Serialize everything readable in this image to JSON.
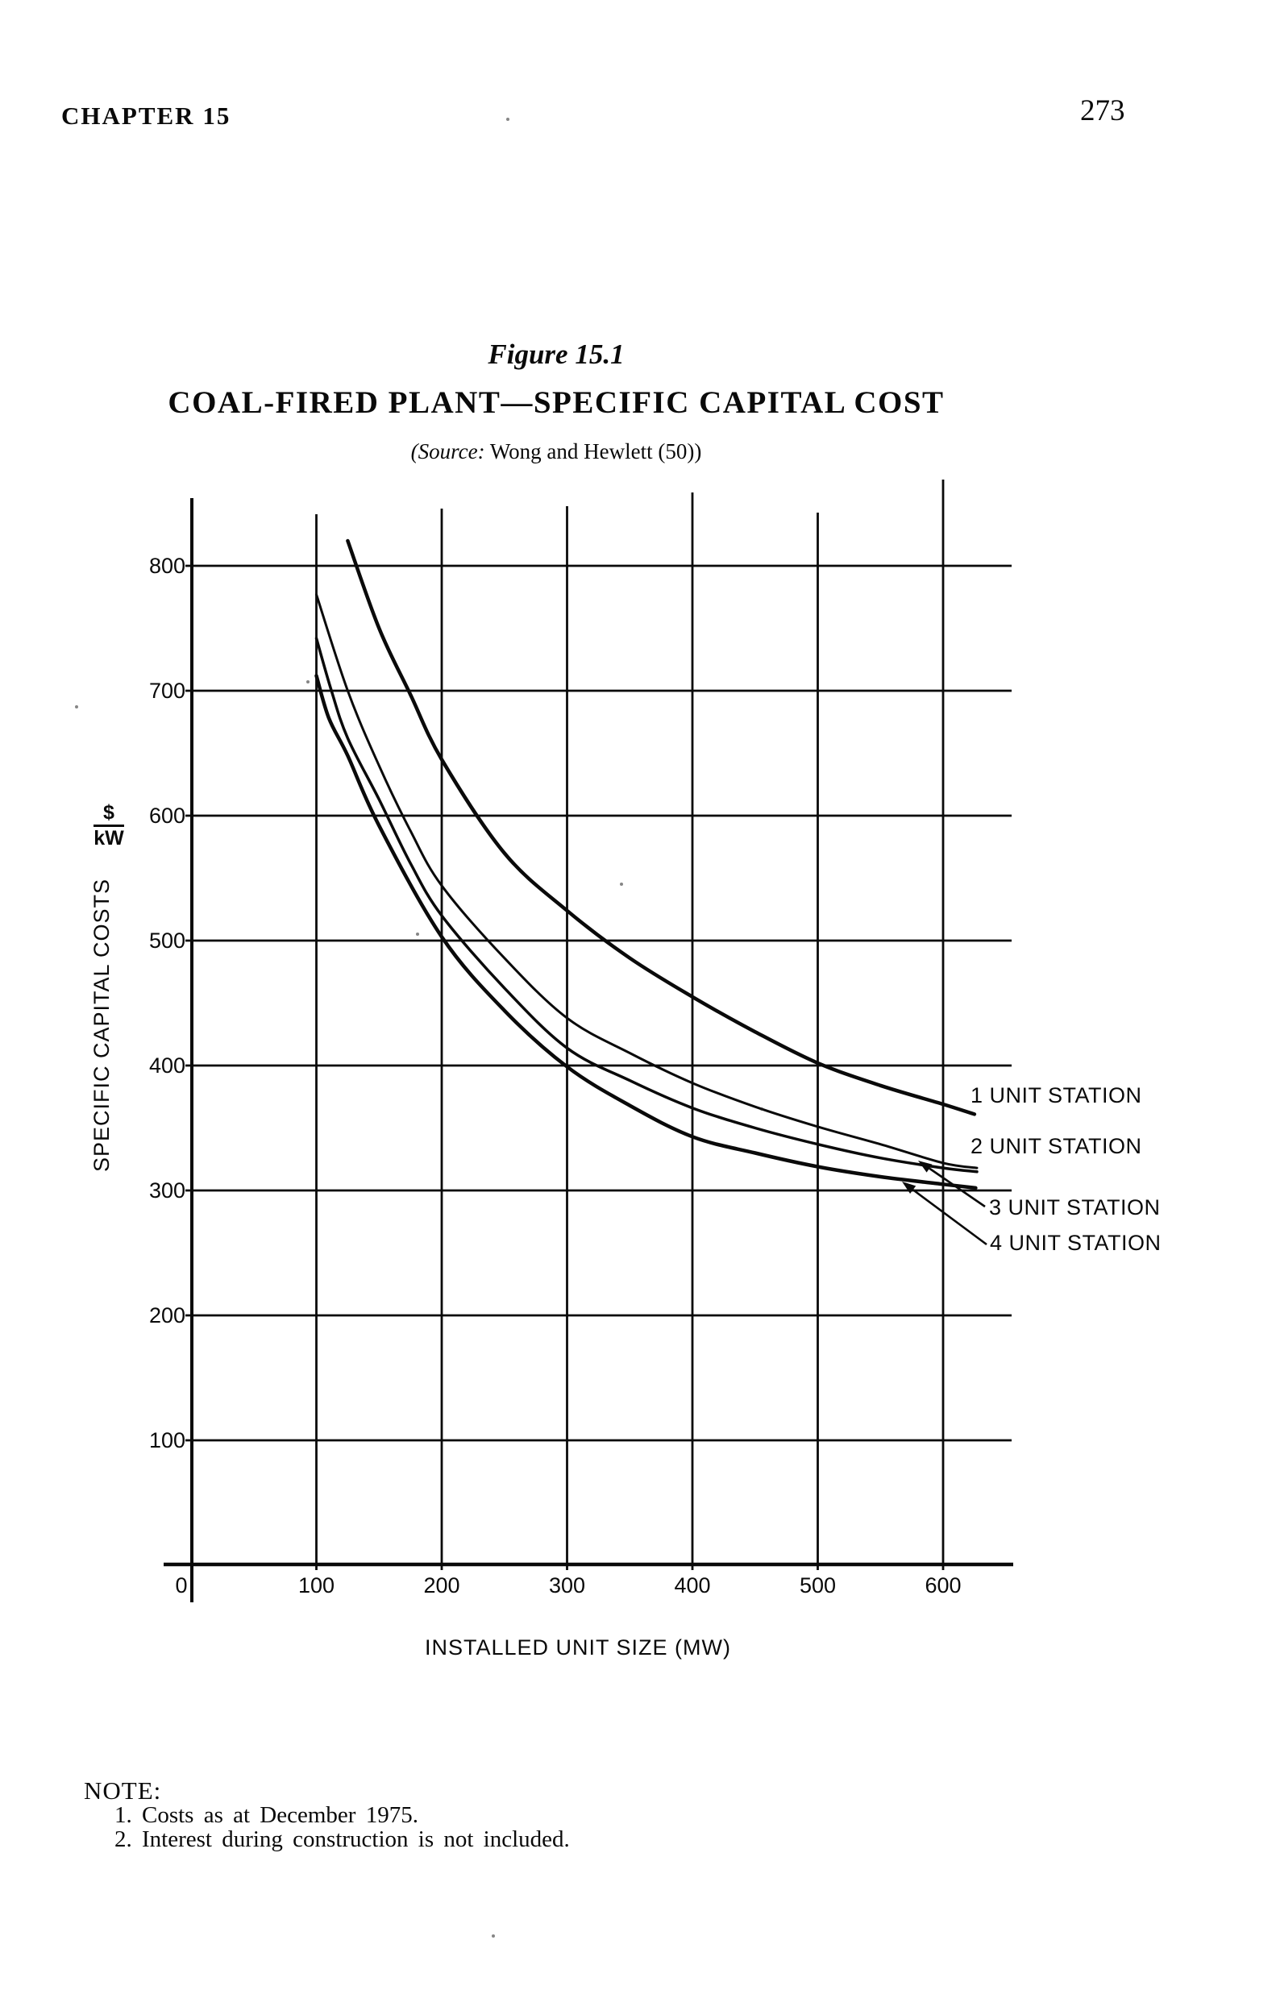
{
  "page": {
    "chapter_heading": "CHAPTER 15",
    "page_number": "273"
  },
  "figure": {
    "figure_label": "Figure 15.1",
    "title": "COAL-FIRED PLANT—SPECIFIC CAPITAL COST",
    "source_italic": "(Source:",
    "source_rest": " Wong and Hewlett (50))"
  },
  "chart_data": {
    "type": "line",
    "title": "COAL-FIRED PLANT—SPECIFIC CAPITAL COST",
    "xlabel": "INSTALLED UNIT SIZE (MW)",
    "ylabel": "SPECIFIC CAPITAL COSTS",
    "y_unit": {
      "numerator": "$",
      "denominator": "kW"
    },
    "xlim": [
      0,
      655
    ],
    "ylim": [
      0,
      860
    ],
    "x_ticks": [
      0,
      100,
      200,
      300,
      400,
      500,
      600
    ],
    "y_ticks": [
      100,
      200,
      300,
      400,
      500,
      600,
      700,
      800
    ],
    "grid": true,
    "legend_position": "right of curve ends",
    "series": [
      {
        "name": "1 UNIT STATION",
        "points": [
          [
            125,
            820
          ],
          [
            150,
            750
          ],
          [
            175,
            697
          ],
          [
            200,
            645
          ],
          [
            250,
            570
          ],
          [
            300,
            524
          ],
          [
            350,
            486
          ],
          [
            400,
            455
          ],
          [
            450,
            427
          ],
          [
            500,
            402
          ],
          [
            550,
            384
          ],
          [
            600,
            369
          ],
          [
            625,
            361
          ]
        ]
      },
      {
        "name": "2 UNIT STATION",
        "points": [
          [
            100,
            777
          ],
          [
            125,
            700
          ],
          [
            150,
            640
          ],
          [
            175,
            588
          ],
          [
            200,
            544
          ],
          [
            250,
            486
          ],
          [
            300,
            438
          ],
          [
            350,
            410
          ],
          [
            400,
            386
          ],
          [
            450,
            367
          ],
          [
            500,
            351
          ],
          [
            550,
            337
          ],
          [
            600,
            322
          ],
          [
            627,
            318
          ]
        ]
      },
      {
        "name": "3 UNIT STATION",
        "points": [
          [
            100,
            742
          ],
          [
            112,
            700
          ],
          [
            125,
            662
          ],
          [
            150,
            613
          ],
          [
            175,
            562
          ],
          [
            200,
            520
          ],
          [
            250,
            462
          ],
          [
            300,
            414
          ],
          [
            350,
            388
          ],
          [
            400,
            366
          ],
          [
            450,
            350
          ],
          [
            500,
            337
          ],
          [
            550,
            326
          ],
          [
            600,
            318
          ],
          [
            627,
            315
          ]
        ]
      },
      {
        "name": "4 UNIT STATION",
        "points": [
          [
            100,
            712
          ],
          [
            110,
            678
          ],
          [
            125,
            648
          ],
          [
            150,
            592
          ],
          [
            200,
            503
          ],
          [
            250,
            444
          ],
          [
            300,
            399
          ],
          [
            350,
            368
          ],
          [
            400,
            343
          ],
          [
            450,
            330
          ],
          [
            500,
            319
          ],
          [
            550,
            311
          ],
          [
            600,
            305
          ],
          [
            626,
            302
          ]
        ]
      }
    ]
  },
  "note": {
    "heading": "NOTE:",
    "items": [
      "1. Costs as at December 1975.",
      "2. Interest during construction is not included."
    ]
  }
}
